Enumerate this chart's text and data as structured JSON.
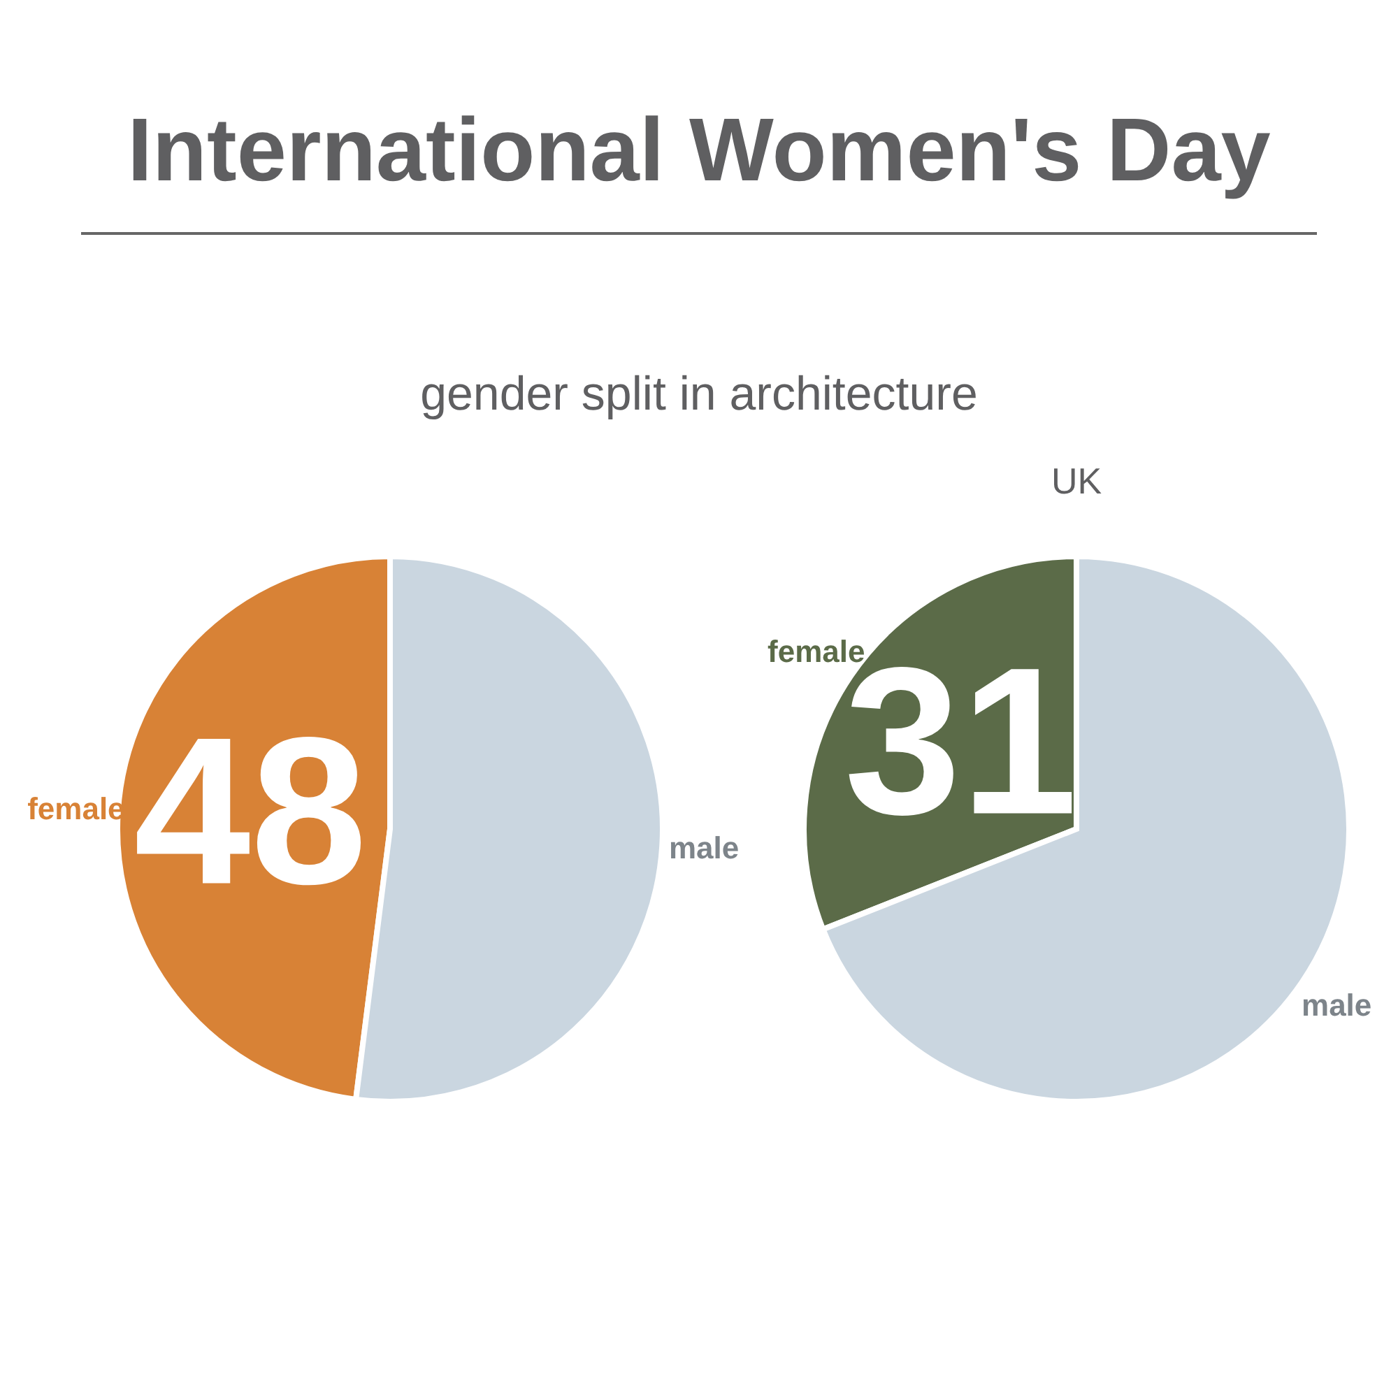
{
  "chart_data": [
    {
      "type": "pie",
      "title": "International Women's Day",
      "subtitle": "gender split in architecture",
      "categories": [
        "female",
        "male"
      ],
      "values": [
        48,
        52
      ],
      "colors": [
        "#d88236",
        "#cad6e0"
      ],
      "value_labels": [
        "48",
        null
      ],
      "legend": false
    },
    {
      "type": "pie",
      "title": "UK",
      "categories": [
        "female",
        "male"
      ],
      "values": [
        31,
        69
      ],
      "colors": [
        "#5b6b48",
        "#cad6e0"
      ],
      "value_labels": [
        "31",
        null
      ],
      "legend": false
    }
  ]
}
